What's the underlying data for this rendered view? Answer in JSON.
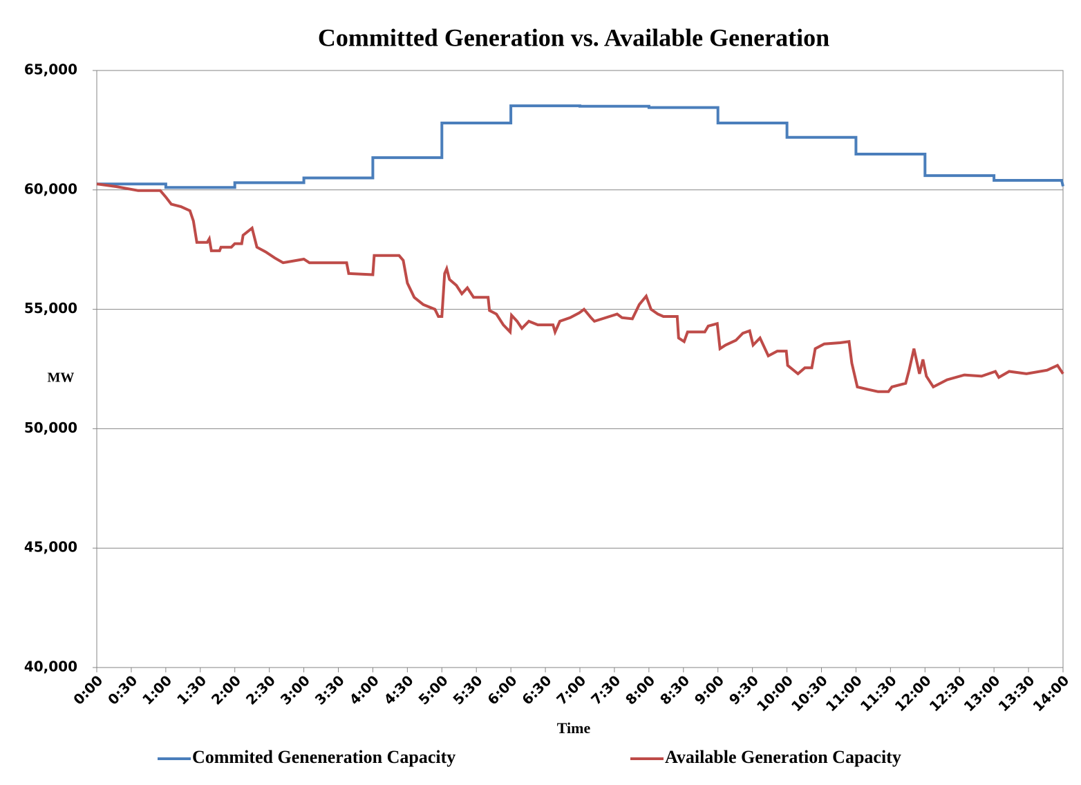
{
  "chart_data": {
    "type": "line",
    "title": "Committed Generation vs.  Available Generation",
    "x_label": "Time",
    "y_label": "MW",
    "xlim": [
      0,
      14
    ],
    "xticks": [
      {
        "value": 0,
        "label": "0:00"
      },
      {
        "value": 0.5,
        "label": "0:30"
      },
      {
        "value": 1,
        "label": "1:00"
      },
      {
        "value": 1.5,
        "label": "1:30"
      },
      {
        "value": 2,
        "label": "2:00"
      },
      {
        "value": 2.5,
        "label": "2:30"
      },
      {
        "value": 3,
        "label": "3:00"
      },
      {
        "value": 3.5,
        "label": "3:30"
      },
      {
        "value": 4,
        "label": "4:00"
      },
      {
        "value": 4.5,
        "label": "4:30"
      },
      {
        "value": 5,
        "label": "5:00"
      },
      {
        "value": 5.5,
        "label": "5:30"
      },
      {
        "value": 6,
        "label": "6:00"
      },
      {
        "value": 6.5,
        "label": "6:30"
      },
      {
        "value": 7,
        "label": "7:00"
      },
      {
        "value": 7.5,
        "label": "7:30"
      },
      {
        "value": 8,
        "label": "8:00"
      },
      {
        "value": 8.5,
        "label": "8:30"
      },
      {
        "value": 9,
        "label": "9:00"
      },
      {
        "value": 9.5,
        "label": "9:30"
      },
      {
        "value": 10,
        "label": "10:00"
      },
      {
        "value": 10.5,
        "label": "10:30"
      },
      {
        "value": 11,
        "label": "11:00"
      },
      {
        "value": 11.5,
        "label": "11:30"
      },
      {
        "value": 12,
        "label": "12:00"
      },
      {
        "value": 12.5,
        "label": "12:30"
      },
      {
        "value": 13,
        "label": "13:00"
      },
      {
        "value": 13.5,
        "label": "13:30"
      },
      {
        "value": 14,
        "label": "14:00"
      }
    ],
    "ylim": [
      40000,
      65000
    ],
    "yticks": [
      {
        "value": 40000,
        "label": "40,000"
      },
      {
        "value": 45000,
        "label": "45,000"
      },
      {
        "value": 50000,
        "label": "50,000"
      },
      {
        "value": 55000,
        "label": "55,000"
      },
      {
        "value": 60000,
        "label": "60,000"
      },
      {
        "value": 65000,
        "label": "65,000"
      }
    ],
    "grid": true,
    "legend": "bottom",
    "series": [
      {
        "name": "Commited Geneneration Capacity",
        "color": "#4a7ebb",
        "x": [
          0,
          1,
          1,
          2,
          2,
          3,
          3,
          4,
          4,
          5,
          5,
          6,
          6,
          7,
          7,
          8,
          8,
          9,
          9,
          10,
          10,
          11,
          11,
          12,
          12,
          13,
          13,
          13.98,
          14
        ],
        "values": [
          60250,
          60250,
          60100,
          60100,
          60300,
          60300,
          60500,
          60500,
          61350,
          61350,
          62800,
          62800,
          63520,
          63520,
          63500,
          63500,
          63450,
          63450,
          62800,
          62800,
          62200,
          62200,
          61500,
          61500,
          60600,
          60600,
          60400,
          60400,
          60150
        ]
      },
      {
        "name": "Available Generation Capacity",
        "color": "#be4b48",
        "x": [
          0,
          0.28,
          0.6,
          0.92,
          1.0,
          1.08,
          1.22,
          1.35,
          1.4,
          1.45,
          1.6,
          1.63,
          1.66,
          1.78,
          1.8,
          1.95,
          2.0,
          2.1,
          2.12,
          2.25,
          2.32,
          2.45,
          2.58,
          2.7,
          3.0,
          3.08,
          3.62,
          3.65,
          4.0,
          4.02,
          4.38,
          4.44,
          4.5,
          4.6,
          4.73,
          4.9,
          4.95,
          5.0,
          5.04,
          5.07,
          5.11,
          5.21,
          5.29,
          5.37,
          5.46,
          5.67,
          5.69,
          5.79,
          5.89,
          5.99,
          6.01,
          6.09,
          6.16,
          6.26,
          6.39,
          6.61,
          6.64,
          6.71,
          6.86,
          6.99,
          7.06,
          7.16,
          7.21,
          7.54,
          7.61,
          7.76,
          7.86,
          7.96,
          8.03,
          8.13,
          8.21,
          8.41,
          8.43,
          8.51,
          8.56,
          8.81,
          8.86,
          8.99,
          9.03,
          9.11,
          9.26,
          9.36,
          9.46,
          9.51,
          9.61,
          9.73,
          9.86,
          9.99,
          10.01,
          10.16,
          10.26,
          10.36,
          10.41,
          10.54,
          10.77,
          10.9,
          10.94,
          11.02,
          11.17,
          11.32,
          11.47,
          11.52,
          11.72,
          11.77,
          11.84,
          11.92,
          11.97,
          12.02,
          12.12,
          12.32,
          12.57,
          12.82,
          13.02,
          13.07,
          13.22,
          13.47,
          13.77,
          13.92,
          14.0
        ],
        "values": [
          60250,
          60140,
          59970,
          59970,
          59700,
          59400,
          59300,
          59130,
          58700,
          57800,
          57800,
          57950,
          57450,
          57450,
          57600,
          57600,
          57750,
          57750,
          58100,
          58400,
          57600,
          57400,
          57150,
          56950,
          57100,
          56950,
          56950,
          56500,
          56450,
          57250,
          57250,
          57050,
          56100,
          55500,
          55200,
          55000,
          54700,
          54700,
          56500,
          56700,
          56250,
          56000,
          55650,
          55900,
          55500,
          55500,
          54950,
          54800,
          54350,
          54050,
          54750,
          54500,
          54200,
          54500,
          54350,
          54350,
          54050,
          54500,
          54650,
          54850,
          55000,
          54650,
          54500,
          54800,
          54650,
          54600,
          55200,
          55550,
          55000,
          54800,
          54700,
          54700,
          53800,
          53650,
          54050,
          54050,
          54300,
          54400,
          53350,
          53500,
          53700,
          54000,
          54100,
          53500,
          53800,
          53050,
          53250,
          53250,
          52650,
          52300,
          52550,
          52550,
          53350,
          53550,
          53600,
          53650,
          52750,
          51750,
          51650,
          51550,
          51550,
          51750,
          51900,
          52450,
          53350,
          52300,
          52900,
          52200,
          51750,
          52050,
          52250,
          52200,
          52400,
          52150,
          52400,
          52300,
          52450,
          52650,
          52300
        ]
      }
    ]
  }
}
